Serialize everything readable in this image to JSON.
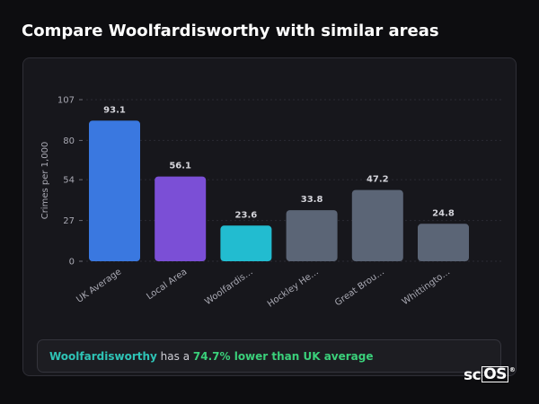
{
  "title": "Compare Woolfardisworthy with similar areas",
  "chart_data": {
    "type": "bar",
    "title": "",
    "xlabel": "",
    "ylabel": "Crimes per 1,000",
    "ylim": [
      0,
      107
    ],
    "yticks": [
      0,
      27,
      54,
      80,
      107
    ],
    "grid": true,
    "categories": [
      "UK Average",
      "Local Area",
      "Woolfardis…",
      "Hockley He…",
      "Great Brou…",
      "Whittingto…"
    ],
    "values": [
      93.1,
      56.1,
      23.6,
      33.8,
      47.2,
      24.8
    ],
    "colors": [
      "#3a78e0",
      "#7b4fd6",
      "#22bcd0",
      "#5b6576",
      "#5b6576",
      "#5b6576"
    ]
  },
  "callout": {
    "area": "Woolfardisworthy",
    "middle": "has a",
    "comparison": "74.7% lower than UK average"
  },
  "brand": {
    "sc": "sc",
    "os": "OS",
    "mark": "®"
  }
}
